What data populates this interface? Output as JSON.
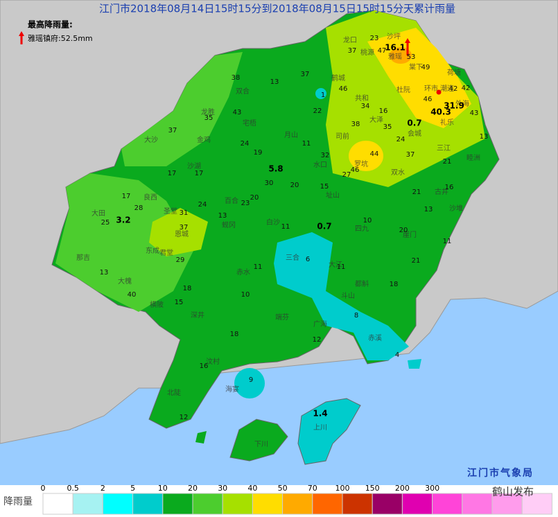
{
  "header": {
    "title": "江门市2018年08月14日15时15分到2018年08月15日15时15分天累计雨量",
    "max_label": "最高降雨量:",
    "max_station": "雅瑶镇府:52.5mm"
  },
  "map": {
    "places": [
      "龙口",
      "沙坪",
      "桃源",
      "雅瑶",
      "棠下",
      "荷塘",
      "鹤城",
      "共和",
      "杜阮",
      "环市",
      "潮连",
      "外海",
      "礼乐",
      "大泽",
      "会城",
      "司前",
      "罗坑",
      "双水",
      "三江",
      "睦洲",
      "古井",
      "沙堆",
      "崖门",
      "三合",
      "大江",
      "水口",
      "址山",
      "四九",
      "白沙",
      "龙胜",
      "双合",
      "宅梧",
      "月山",
      "大沙",
      "金鸡",
      "沙湖",
      "良西",
      "百合",
      "蚬冈",
      "赤水",
      "恩城",
      "圣堂",
      "东成",
      "大田",
      "那吉",
      "大槐",
      "君堂",
      "横陂",
      "深井",
      "端芬",
      "广海",
      "都斛",
      "斗山",
      "赤溪",
      "汶村",
      "海宴",
      "北陡",
      "下川",
      "上川"
    ],
    "values": [
      23,
      37,
      47,
      16.1,
      53,
      49,
      42,
      42,
      46,
      43,
      13,
      21,
      16,
      13,
      11,
      21,
      20,
      18,
      10,
      0.7,
      11,
      11,
      6,
      8,
      4,
      12,
      10,
      11,
      18,
      16,
      9,
      12,
      15,
      18,
      29,
      37,
      31,
      40,
      13,
      25,
      3.2,
      28,
      17,
      17,
      17,
      24,
      23,
      20,
      30,
      5.8,
      20,
      15,
      27,
      46,
      44,
      37,
      24,
      35,
      38,
      34,
      16,
      0.7,
      40.3,
      31.9,
      46,
      22,
      1,
      37,
      13,
      38,
      43,
      35,
      37,
      11,
      24,
      19,
      32,
      13,
      21,
      1.4
    ]
  },
  "legend": {
    "title": "降雨量",
    "thresholds": [
      0,
      0.5,
      2,
      5,
      10,
      20,
      30,
      40,
      50,
      70,
      100,
      150,
      200,
      300
    ],
    "colors": [
      "#ffffff",
      "#a6f2f2",
      "#00ffff",
      "#00cccc",
      "#0aaa1e",
      "#4ccd2e",
      "#a6e000",
      "#ffdd00",
      "#ffaa00",
      "#ff6600",
      "#cc3300",
      "#990066",
      "#e000b0",
      "#ff44d8",
      "#ff77e4",
      "#ff9cec",
      "#ffcdf6"
    ]
  },
  "footer": {
    "agency": "江门市气象局",
    "watermark": "鹤山发布"
  }
}
